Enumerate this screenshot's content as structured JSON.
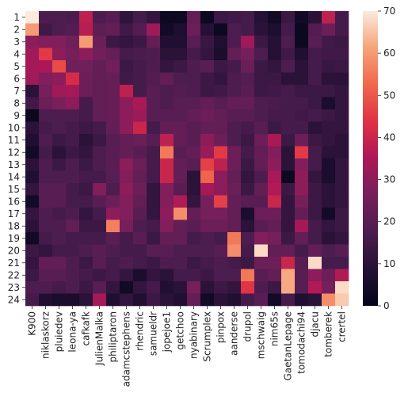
{
  "chart_data": {
    "type": "heatmap",
    "title": "",
    "xlabel": "",
    "ylabel": "",
    "colormap": "rocket",
    "vmin": 0,
    "vmax": 70,
    "colorbar_ticks": [
      "0",
      "10",
      "20",
      "30",
      "40",
      "50",
      "60",
      "70"
    ],
    "x_labels": [
      "K900",
      "niklaskorz",
      "pluiedev",
      "leona-ya",
      "cafkafk",
      "JulienMalka",
      "philiptaron",
      "adamcstephens",
      "rhendric",
      "samueldr",
      "jopejoe1",
      "getchoo",
      "nyabinary",
      "Scrumplex",
      "pinpox",
      "aanderse",
      "drupol",
      "mschwaig",
      "nim65s",
      "GaetanLepage",
      "tomodachi94",
      "djacu",
      "tomberek",
      "crertel"
    ],
    "y_labels": [
      "1",
      "2",
      "3",
      "4",
      "5",
      "6",
      "7",
      "8",
      "9",
      "10",
      "11",
      "12",
      "13",
      "14",
      "15",
      "16",
      "17",
      "18",
      "19",
      "20",
      "21",
      "22",
      "23",
      "24"
    ],
    "values": [
      [
        70,
        18,
        18,
        17,
        38,
        18,
        20,
        11,
        16,
        12,
        3,
        3,
        22,
        3,
        14,
        15,
        16,
        9,
        4,
        14,
        4,
        10,
        38,
        16
      ],
      [
        60,
        15,
        18,
        19,
        37,
        21,
        22,
        15,
        19,
        33,
        4,
        7,
        24,
        9,
        3,
        18,
        16,
        10,
        7,
        16,
        2,
        19,
        24,
        16
      ],
      [
        30,
        28,
        28,
        25,
        60,
        24,
        14,
        12,
        14,
        22,
        8,
        8,
        20,
        13,
        8,
        18,
        33,
        14,
        9,
        18,
        2,
        20,
        15,
        14
      ],
      [
        33,
        45,
        30,
        26,
        30,
        25,
        23,
        16,
        17,
        18,
        10,
        10,
        16,
        12,
        6,
        22,
        26,
        18,
        9,
        15,
        8,
        16,
        15,
        15
      ],
      [
        34,
        35,
        48,
        25,
        25,
        22,
        25,
        14,
        16,
        18,
        12,
        14,
        18,
        20,
        14,
        16,
        24,
        14,
        12,
        18,
        10,
        16,
        13,
        14
      ],
      [
        33,
        28,
        30,
        42,
        24,
        22,
        23,
        15,
        16,
        19,
        22,
        18,
        18,
        14,
        12,
        18,
        19,
        14,
        14,
        10,
        10,
        16,
        10,
        10
      ],
      [
        10,
        26,
        33,
        34,
        24,
        22,
        23,
        38,
        16,
        20,
        18,
        19,
        18,
        14,
        15,
        18,
        20,
        14,
        15,
        16,
        14,
        14,
        14,
        12
      ],
      [
        15,
        24,
        27,
        30,
        16,
        22,
        23,
        30,
        35,
        20,
        18,
        20,
        20,
        22,
        20,
        22,
        22,
        18,
        17,
        16,
        16,
        14,
        6,
        12
      ],
      [
        2,
        18,
        18,
        18,
        16,
        22,
        23,
        30,
        32,
        20,
        20,
        20,
        22,
        24,
        22,
        20,
        20,
        18,
        16,
        16,
        15,
        16,
        14,
        12
      ],
      [
        10,
        16,
        18,
        16,
        14,
        16,
        22,
        30,
        40,
        16,
        22,
        22,
        20,
        22,
        22,
        18,
        16,
        20,
        14,
        16,
        16,
        10,
        12,
        12
      ],
      [
        8,
        18,
        14,
        16,
        10,
        14,
        20,
        22,
        24,
        20,
        38,
        22,
        20,
        30,
        24,
        18,
        14,
        24,
        35,
        14,
        24,
        14,
        12,
        10
      ],
      [
        4,
        16,
        10,
        14,
        12,
        18,
        20,
        22,
        20,
        16,
        55,
        20,
        22,
        32,
        45,
        24,
        16,
        22,
        28,
        10,
        45,
        16,
        10,
        10
      ],
      [
        10,
        18,
        14,
        18,
        14,
        18,
        20,
        30,
        24,
        16,
        40,
        22,
        20,
        46,
        38,
        24,
        14,
        22,
        30,
        10,
        28,
        16,
        6,
        12
      ],
      [
        8,
        18,
        18,
        18,
        16,
        16,
        20,
        28,
        22,
        16,
        40,
        22,
        10,
        52,
        30,
        22,
        12,
        18,
        35,
        2,
        30,
        12,
        6,
        12
      ],
      [
        12,
        20,
        20,
        16,
        14,
        28,
        18,
        30,
        24,
        12,
        28,
        20,
        10,
        34,
        30,
        24,
        14,
        22,
        36,
        14,
        30,
        14,
        10,
        12
      ],
      [
        4,
        20,
        20,
        16,
        16,
        20,
        24,
        28,
        22,
        12,
        28,
        36,
        12,
        26,
        46,
        22,
        20,
        20,
        40,
        12,
        26,
        14,
        10,
        12
      ],
      [
        12,
        18,
        16,
        18,
        12,
        16,
        30,
        28,
        20,
        12,
        30,
        58,
        22,
        26,
        26,
        22,
        6,
        24,
        24,
        12,
        22,
        14,
        4,
        14
      ],
      [
        10,
        18,
        18,
        22,
        14,
        14,
        56,
        26,
        18,
        16,
        28,
        22,
        20,
        24,
        24,
        22,
        10,
        20,
        22,
        12,
        34,
        16,
        12,
        14
      ],
      [
        4,
        16,
        18,
        16,
        16,
        16,
        20,
        16,
        20,
        14,
        22,
        22,
        16,
        18,
        16,
        55,
        18,
        28,
        26,
        14,
        22,
        16,
        10,
        12
      ],
      [
        14,
        12,
        16,
        16,
        18,
        20,
        18,
        16,
        16,
        20,
        20,
        18,
        18,
        18,
        20,
        58,
        16,
        68,
        22,
        22,
        16,
        22,
        18,
        20
      ],
      [
        12,
        22,
        22,
        18,
        14,
        20,
        16,
        18,
        16,
        14,
        18,
        18,
        14,
        16,
        18,
        16,
        14,
        24,
        24,
        40,
        20,
        68,
        16,
        16
      ],
      [
        14,
        20,
        20,
        18,
        16,
        14,
        16,
        12,
        6,
        12,
        10,
        16,
        16,
        14,
        18,
        18,
        55,
        20,
        22,
        62,
        20,
        30,
        24,
        36
      ],
      [
        18,
        18,
        16,
        18,
        14,
        20,
        12,
        4,
        12,
        16,
        8,
        10,
        26,
        10,
        14,
        12,
        44,
        18,
        14,
        62,
        20,
        36,
        26,
        68
      ],
      [
        16,
        8,
        6,
        6,
        10,
        34,
        8,
        12,
        8,
        14,
        10,
        8,
        22,
        4,
        10,
        8,
        16,
        20,
        4,
        16,
        8,
        10,
        58,
        66
      ]
    ]
  }
}
